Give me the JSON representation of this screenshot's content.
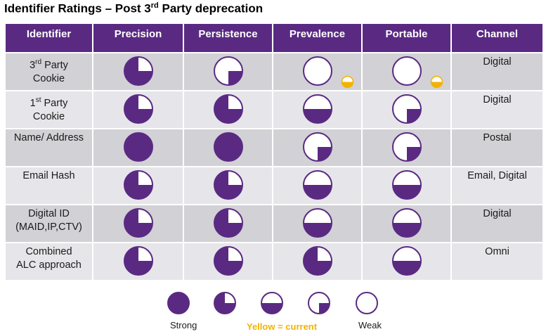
{
  "title": {
    "main": "Identifier Ratings – Post 3",
    "sup": "rd",
    "rest": " Party deprecation"
  },
  "headers": [
    "Identifier",
    "Precision",
    "Persistence",
    "Prevalence",
    "Portable",
    "Channel"
  ],
  "rows": [
    {
      "id_pre": "3",
      "id_sup": "rd",
      "id_post": " Party",
      "id_line2": "Cookie",
      "precision": 0.75,
      "persistence": 0.25,
      "prevalence": 0,
      "portable": 0,
      "current_prevalence": 0.5,
      "current_portable": 0.5,
      "channel": "Digital"
    },
    {
      "id_pre": "1",
      "id_sup": "st",
      "id_post": " Party",
      "id_line2": "Cookie",
      "precision": 0.75,
      "persistence": 0.75,
      "prevalence": 0.5,
      "portable": 0.25,
      "channel": "Digital"
    },
    {
      "id_pre": "Name/ Address",
      "id_sup": "",
      "id_post": "",
      "id_line2": "",
      "precision": 1,
      "persistence": 1,
      "prevalence": 0.25,
      "portable": 0.25,
      "channel": "Postal"
    },
    {
      "id_pre": "Email Hash",
      "id_sup": "",
      "id_post": "",
      "id_line2": "",
      "precision": 0.75,
      "persistence": 0.75,
      "prevalence": 0.5,
      "portable": 0.5,
      "channel": "Email, Digital"
    },
    {
      "id_pre": "Digital ID",
      "id_sup": "",
      "id_post": "",
      "id_line2": "(MAID,IP,CTV)",
      "precision": 0.75,
      "persistence": 0.75,
      "prevalence": 0.5,
      "portable": 0.5,
      "channel": "Digital"
    },
    {
      "id_pre": "Combined",
      "id_sup": "",
      "id_post": "",
      "id_line2": "ALC approach",
      "precision": 0.75,
      "persistence": 0.75,
      "prevalence": 0.75,
      "portable": 0.5,
      "channel": "Omni"
    }
  ],
  "legend": {
    "levels": [
      1,
      0.75,
      0.5,
      0.25,
      0
    ],
    "strong_label": "Strong",
    "weak_label": "Weak",
    "current_note": "Yellow = current"
  },
  "colors": {
    "purple": "#5a2a83",
    "yellow": "#f2b300"
  }
}
